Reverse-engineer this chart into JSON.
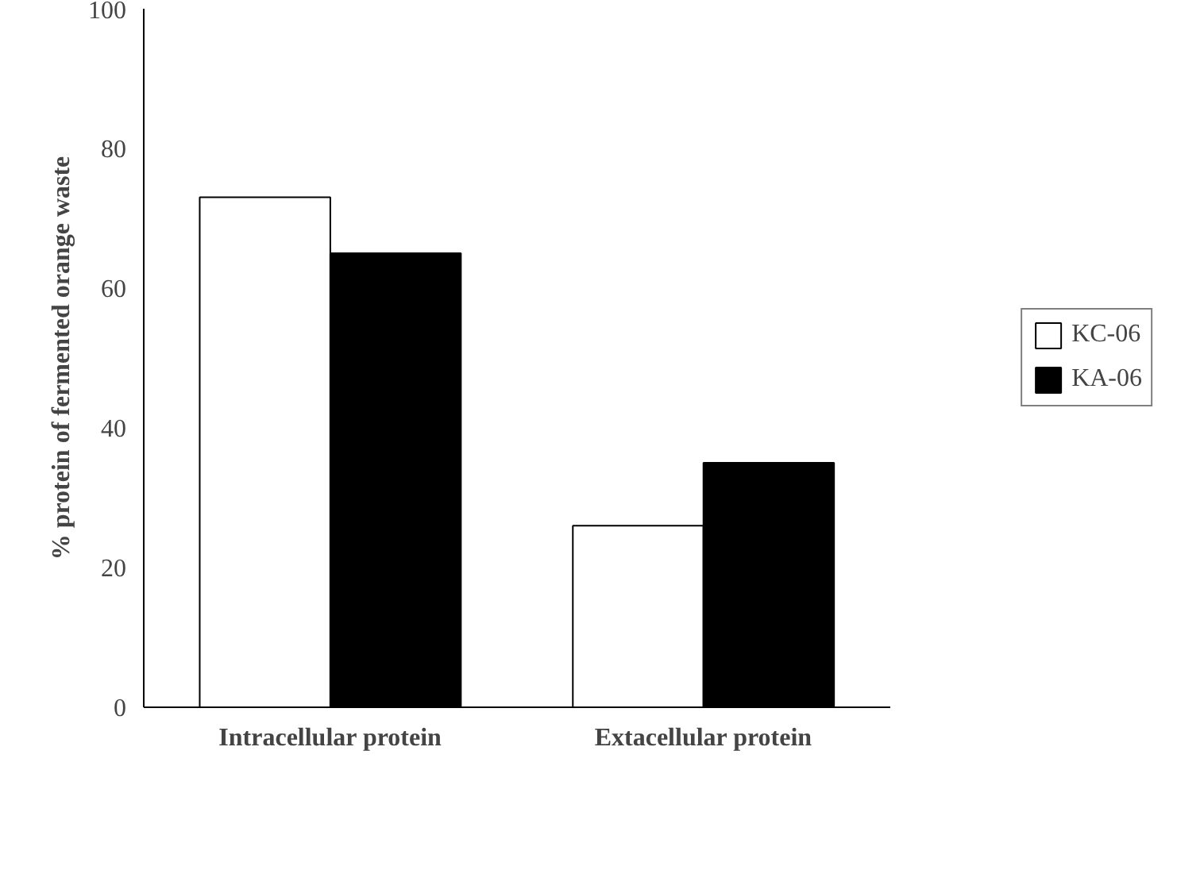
{
  "chart_data": {
    "type": "bar",
    "ylabel": "% protein of fermented orange waste",
    "categories": [
      "Intracellular protein",
      "Extacellular protein"
    ],
    "series": [
      {
        "name": "KC-06",
        "color": "#ffffff",
        "values": [
          73,
          26
        ]
      },
      {
        "name": "KA-06",
        "color": "#000000",
        "values": [
          65,
          35
        ]
      }
    ],
    "ylim": [
      0,
      100
    ],
    "yticks": [
      0,
      20,
      40,
      60,
      80,
      100
    ],
    "grid": false,
    "legend": "right"
  }
}
